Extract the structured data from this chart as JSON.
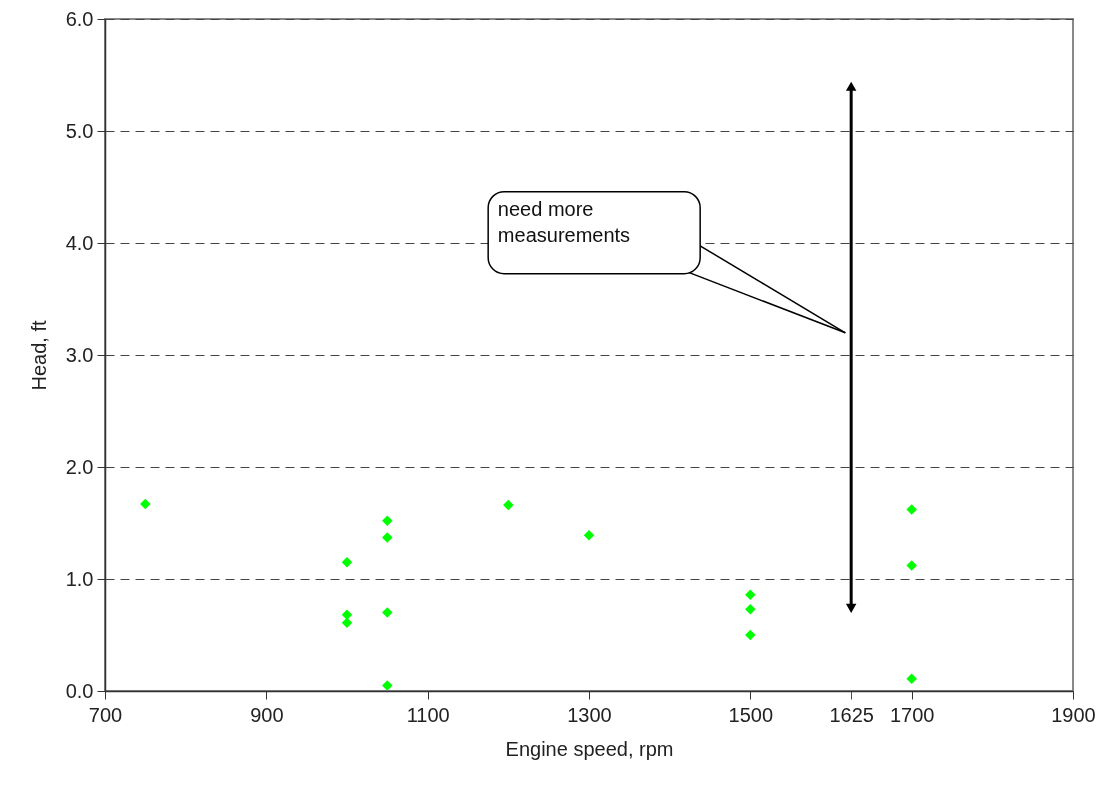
{
  "chart_data": {
    "type": "scatter",
    "xlabel": "Engine speed, rpm",
    "ylabel": "Head, ft",
    "x": [
      750,
      1000,
      1000,
      1000,
      1050,
      1050,
      1050,
      1050,
      1200,
      1300,
      1500,
      1500,
      1500,
      1700,
      1700,
      1700
    ],
    "series": [
      {
        "color": "#00ff00",
        "values": [
          1.67,
          1.15,
          0.68,
          0.61,
          1.52,
          1.37,
          0.7,
          0.05,
          1.66,
          1.39,
          0.86,
          0.73,
          0.5,
          1.62,
          1.12,
          0.11
        ]
      }
    ],
    "xlim": [
      700,
      1900
    ],
    "xticks": [
      700,
      900,
      1100,
      1300,
      1500,
      1625,
      1700,
      1900
    ],
    "ylim": [
      0,
      6
    ],
    "yticks": [
      {
        "value": 0,
        "label": "0.0"
      },
      {
        "value": 1,
        "label": "1.0"
      },
      {
        "value": 2,
        "label": "2.0"
      },
      {
        "value": 3,
        "label": "3.0"
      },
      {
        "value": 4,
        "label": "4.0"
      },
      {
        "value": 5,
        "label": "5.0"
      },
      {
        "value": 6,
        "label": "6.0"
      }
    ],
    "grid": "y",
    "marker": "diamond",
    "ref_lines": [
      {
        "axis": "x",
        "value": 1625,
        "label": "need more\nmeasurements"
      }
    ]
  }
}
